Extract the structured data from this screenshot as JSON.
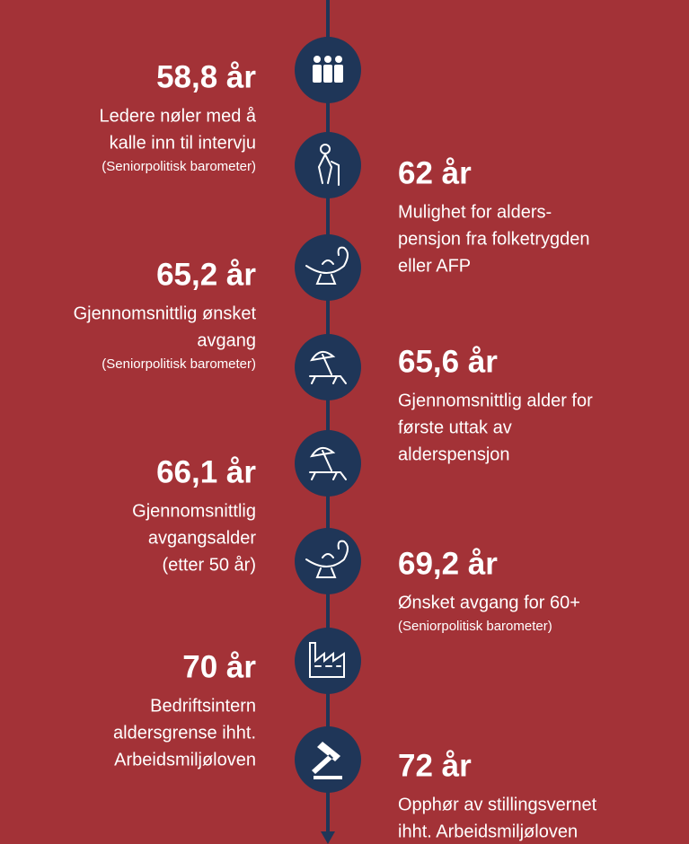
{
  "events": [
    {
      "heading": "58,8 år",
      "lines": [
        "Ledere nøler med å",
        "kalle inn til intervju"
      ],
      "source": "(Seniorpolitisk barometer)"
    },
    {
      "heading": "62 år",
      "lines": [
        "Mulighet for alders-",
        "pensjon fra folketrygden",
        "eller AFP"
      ]
    },
    {
      "heading": "65,2 år",
      "lines": [
        "Gjennomsnittlig ønsket",
        "avgang"
      ],
      "source": "(Seniorpolitisk barometer)"
    },
    {
      "heading": "65,6 år",
      "lines": [
        "Gjennomsnittlig alder for",
        "første uttak av",
        "alderspensjon"
      ]
    },
    {
      "heading": "66,1 år",
      "lines": [
        "Gjennomsnittlig",
        "avgangsalder ",
        "(etter 50 år)"
      ]
    },
    {
      "heading": "69,2 år",
      "lines": [
        "Ønsket avgang for 60+"
      ],
      "source": "(Seniorpolitisk barometer)"
    },
    {
      "heading": "70 år",
      "lines": [
        "Bedriftsintern",
        "aldersgrense ihht.",
        "Arbeidsmiljøloven"
      ]
    },
    {
      "heading": "72 år",
      "lines": [
        "Opphør av stillingsvernet",
        "ihht. Arbeidsmiljøloven"
      ]
    }
  ]
}
